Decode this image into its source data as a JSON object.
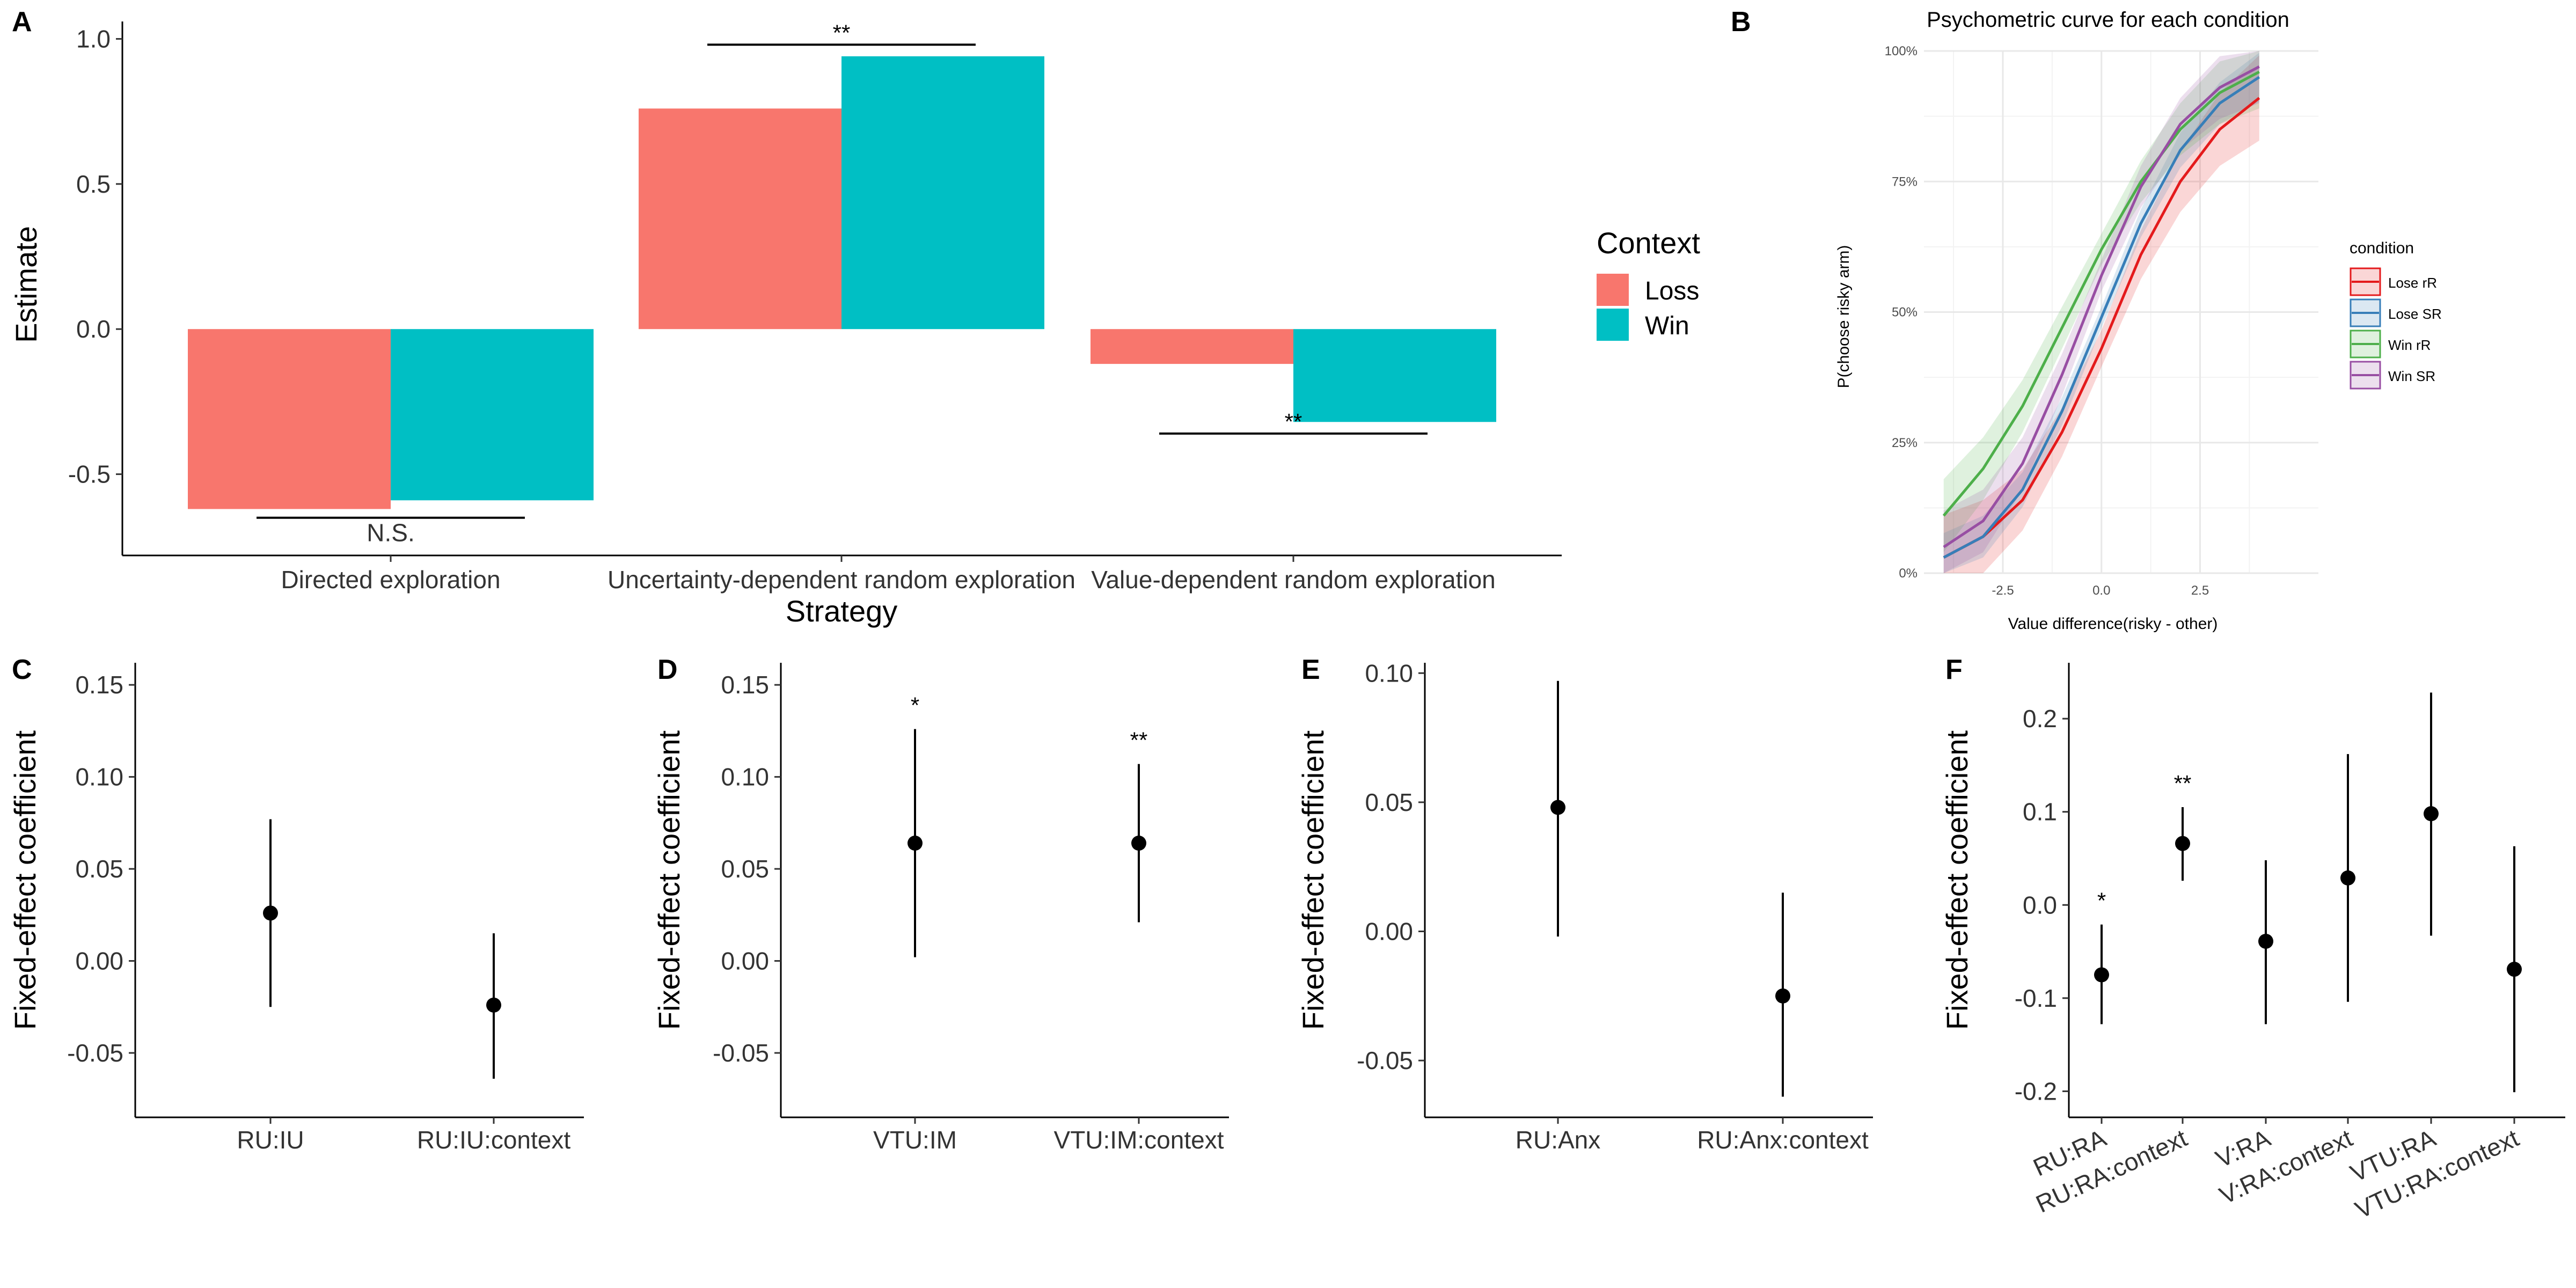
{
  "panel_letters": [
    "A",
    "B",
    "C",
    "D",
    "E",
    "F"
  ],
  "colors": {
    "loss": "#F8766D",
    "win": "#00BFC4",
    "lose_rR": "#E41A1C",
    "lose_SR": "#377EB8",
    "win_rR": "#4DAF4A",
    "win_SR": "#984EA3"
  },
  "chart_data": [
    {
      "panel": "A",
      "type": "bar",
      "categories": [
        "Directed exploration",
        "Uncertainty-dependent random exploration",
        "Value-dependent random exploration"
      ],
      "series": [
        {
          "name": "Loss",
          "values": [
            -0.62,
            0.76,
            -0.12
          ]
        },
        {
          "name": "Win",
          "values": [
            -0.59,
            0.94,
            -0.32
          ]
        }
      ],
      "xlabel": "Strategy",
      "ylabel": "Estimate",
      "ylim": [
        -0.78,
        1.06
      ],
      "yticks": [
        1.0,
        0.5,
        0.0,
        -0.5
      ],
      "ytick_labels": [
        "1.0",
        "0.5",
        "0.0",
        "-0.5"
      ],
      "legend_title": "Context",
      "legend_position": "right",
      "annotations": [
        {
          "category": 0,
          "text": "N.S.",
          "bracket_y": -0.65
        },
        {
          "category": 1,
          "text": "**",
          "bracket_y": 0.98
        },
        {
          "category": 2,
          "text": "**",
          "bracket_y": -0.36
        }
      ]
    },
    {
      "panel": "B",
      "type": "line",
      "title": "Psychometric curve for each condition",
      "xlabel": "Value difference(risky - other)",
      "ylabel": "P(choose risky arm)",
      "xlim": [
        -4.5,
        5.5
      ],
      "ylim": [
        0,
        1
      ],
      "xticks": [
        -2.5,
        0.0,
        2.5
      ],
      "xtick_labels": [
        "-2.5",
        "0.0",
        "2.5"
      ],
      "yticks": [
        0,
        0.25,
        0.5,
        0.75,
        1.0
      ],
      "ytick_labels": [
        "0%",
        "25%",
        "50%",
        "75%",
        "100%"
      ],
      "legend_title": "condition",
      "legend_position": "right",
      "series": [
        {
          "name": "Lose rR",
          "x": [
            -4,
            -3,
            -2,
            -1,
            0,
            1,
            2,
            3,
            4
          ],
          "y": [
            0.03,
            0.07,
            0.14,
            0.27,
            0.43,
            0.61,
            0.75,
            0.85,
            0.91
          ]
        },
        {
          "name": "Lose SR",
          "x": [
            -4,
            -3,
            -2,
            -1,
            0,
            1,
            2,
            3,
            4
          ],
          "y": [
            0.03,
            0.07,
            0.16,
            0.31,
            0.49,
            0.67,
            0.81,
            0.9,
            0.95
          ]
        },
        {
          "name": "Win rR",
          "x": [
            -4,
            -3,
            -2,
            -1,
            0,
            1,
            2,
            3,
            4
          ],
          "y": [
            0.11,
            0.2,
            0.32,
            0.47,
            0.62,
            0.75,
            0.85,
            0.92,
            0.96
          ]
        },
        {
          "name": "Win SR",
          "x": [
            -4,
            -3,
            -2,
            -1,
            0,
            1,
            2,
            3,
            4
          ],
          "y": [
            0.05,
            0.1,
            0.21,
            0.38,
            0.57,
            0.74,
            0.86,
            0.93,
            0.97
          ]
        }
      ]
    },
    {
      "panel": "C",
      "type": "scatter",
      "categories": [
        "RU:IU",
        "RU:IU:context"
      ],
      "values": [
        0.026,
        -0.024
      ],
      "ci_low": [
        -0.025,
        -0.064
      ],
      "ci_high": [
        0.077,
        0.015
      ],
      "significance": [
        "",
        ""
      ],
      "ylabel": "Fixed-effect coefficient",
      "ylim": [
        -0.085,
        0.162
      ],
      "yticks": [
        0.15,
        0.1,
        0.05,
        0.0,
        -0.05
      ],
      "ytick_labels": [
        "0.15",
        "0.10",
        "0.05",
        "0.00",
        "-0.05"
      ]
    },
    {
      "panel": "D",
      "type": "scatter",
      "categories": [
        "VTU:IM",
        "VTU:IM:context"
      ],
      "values": [
        0.064,
        0.064
      ],
      "ci_low": [
        0.002,
        0.021
      ],
      "ci_high": [
        0.126,
        0.107
      ],
      "significance": [
        "*",
        "**"
      ],
      "ylabel": "Fixed-effect coefficient",
      "ylim": [
        -0.085,
        0.162
      ],
      "yticks": [
        0.15,
        0.1,
        0.05,
        0.0,
        -0.05
      ],
      "ytick_labels": [
        "0.15",
        "0.10",
        "0.05",
        "0.00",
        "-0.05"
      ]
    },
    {
      "panel": "E",
      "type": "scatter",
      "categories": [
        "RU:Anx",
        "RU:Anx:context"
      ],
      "values": [
        0.048,
        -0.025
      ],
      "ci_low": [
        -0.002,
        -0.064
      ],
      "ci_high": [
        0.097,
        0.015
      ],
      "significance": [
        "",
        ""
      ],
      "ylabel": "Fixed-effect coefficient",
      "ylim": [
        -0.072,
        0.104
      ],
      "yticks": [
        0.1,
        0.05,
        0.0,
        -0.05
      ],
      "ytick_labels": [
        "0.10",
        "0.05",
        "0.00",
        "-0.05"
      ]
    },
    {
      "panel": "F",
      "type": "scatter",
      "categories": [
        "RU:RA",
        "RU:RA:context",
        "V:RA",
        "V:RA:context",
        "VTU:RA",
        "VTU:RA:context"
      ],
      "values": [
        -0.075,
        0.066,
        -0.039,
        0.029,
        0.098,
        -0.069
      ],
      "ci_low": [
        -0.128,
        0.026,
        -0.128,
        -0.104,
        -0.033,
        -0.201
      ],
      "ci_high": [
        -0.021,
        0.105,
        0.048,
        0.162,
        0.228,
        0.063
      ],
      "significance": [
        "*",
        "**",
        "",
        "",
        "",
        ""
      ],
      "ylabel": "Fixed-effect coefficient",
      "ylim": [
        -0.228,
        0.26
      ],
      "yticks": [
        0.2,
        0.1,
        0.0,
        -0.1,
        -0.2
      ],
      "ytick_labels": [
        "0.2",
        "0.1",
        "0.0",
        "-0.1",
        "-0.2"
      ]
    }
  ]
}
